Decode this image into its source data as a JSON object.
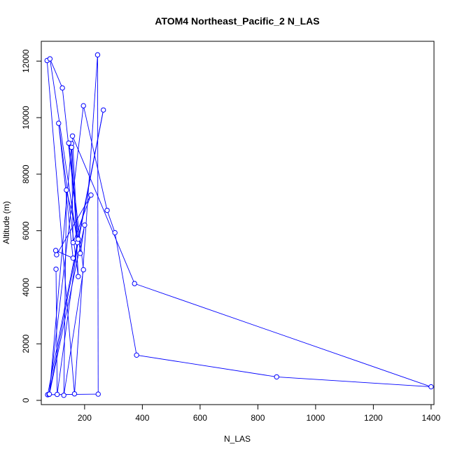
{
  "chart_data": {
    "type": "scatter",
    "title": "ATOM4 Northeast_Pacific_2 N_LAS",
    "xlabel": "N_LAS",
    "ylabel": "Altitude (m)",
    "xlim": [
      50,
      1410
    ],
    "ylim": [
      -150,
      12700
    ],
    "xticks": [
      200,
      400,
      600,
      800,
      1000,
      1200,
      1400
    ],
    "yticks": [
      0,
      2000,
      4000,
      6000,
      8000,
      10000,
      12000
    ],
    "grid": false,
    "legend": "none",
    "connected": true,
    "color": "#0000ff",
    "points": [
      {
        "x": 70,
        "y": 12020
      },
      {
        "x": 165,
        "y": 230
      },
      {
        "x": 245,
        "y": 12220
      },
      {
        "x": 247,
        "y": 220
      },
      {
        "x": 72,
        "y": 200
      },
      {
        "x": 265,
        "y": 10270
      },
      {
        "x": 77,
        "y": 210
      },
      {
        "x": 196,
        "y": 10420
      },
      {
        "x": 278,
        "y": 6720
      },
      {
        "x": 305,
        "y": 5930
      },
      {
        "x": 380,
        "y": 1600
      },
      {
        "x": 865,
        "y": 830
      },
      {
        "x": 1400,
        "y": 480
      },
      {
        "x": 373,
        "y": 4130
      },
      {
        "x": 158,
        "y": 9350
      },
      {
        "x": 175,
        "y": 5580
      },
      {
        "x": 80,
        "y": 12080
      },
      {
        "x": 123,
        "y": 11050
      },
      {
        "x": 185,
        "y": 5200
      },
      {
        "x": 200,
        "y": 6200
      },
      {
        "x": 78,
        "y": 220
      },
      {
        "x": 155,
        "y": 9080
      },
      {
        "x": 178,
        "y": 4380
      },
      {
        "x": 110,
        "y": 9800
      },
      {
        "x": 160,
        "y": 5030
      },
      {
        "x": 100,
        "y": 5300
      },
      {
        "x": 103,
        "y": 5150
      },
      {
        "x": 222,
        "y": 7260
      },
      {
        "x": 160,
        "y": 5580
      },
      {
        "x": 155,
        "y": 8950
      },
      {
        "x": 145,
        "y": 9100
      },
      {
        "x": 196,
        "y": 4620
      },
      {
        "x": 128,
        "y": 180
      },
      {
        "x": 137,
        "y": 7440
      },
      {
        "x": 178,
        "y": 5700
      },
      {
        "x": 105,
        "y": 210
      },
      {
        "x": 101,
        "y": 4640
      }
    ]
  }
}
